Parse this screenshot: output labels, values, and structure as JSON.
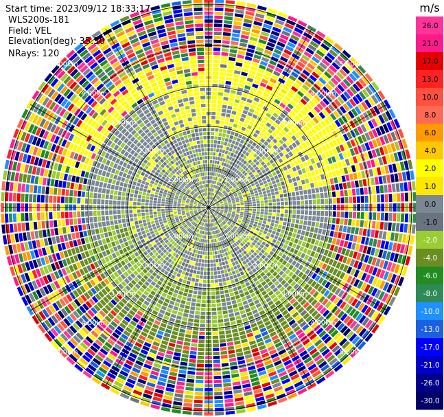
{
  "header": {
    "start_time": "Start time: 2023/09/12 18:33:17",
    "device": "WLS200s-181",
    "field": "Field: VEL",
    "elevation": "Elevation(deg): 35.30",
    "nrays": "NRays: 120"
  },
  "chart_data": {
    "type": "heatmap",
    "projection": "polar-ppi",
    "title": "",
    "n_rays": 120,
    "field": "VEL",
    "units": "m/s",
    "range_rings": [
      {
        "label": "1.00km"
      },
      {
        "label": "2.00km"
      },
      {
        "label": "3.00km"
      },
      {
        "label": "4.00km"
      },
      {
        "label": "5.00km"
      }
    ],
    "colorbar": {
      "unit": "m/s",
      "ticks": [
        "26.0",
        "21.0",
        "17.0",
        "13.0",
        "10.0",
        "8.0",
        "6.0",
        "4.0",
        "2.0",
        "1.0",
        "0.0",
        "-1.0",
        "-2.0",
        "-4.0",
        "-6.0",
        "-8.0",
        "-10.0",
        "-13.0",
        "-17.0",
        "-21.0",
        "-26.0",
        "-30.0"
      ],
      "colors": [
        "#ff3399",
        "#ff1a8c",
        "#e60000",
        "#ff2222",
        "#ff5040",
        "#ff6a55",
        "#ff9a00",
        "#ffc800",
        "#ffff00",
        "#ffe600",
        "#7b8894",
        "#6a7480",
        "#9acd32",
        "#6b8e23",
        "#228b22",
        "#2e8b57",
        "#1e90ff",
        "#1c5fe0",
        "#0000ff",
        "#0000c8",
        "#00008b",
        "#000066"
      ]
    }
  }
}
